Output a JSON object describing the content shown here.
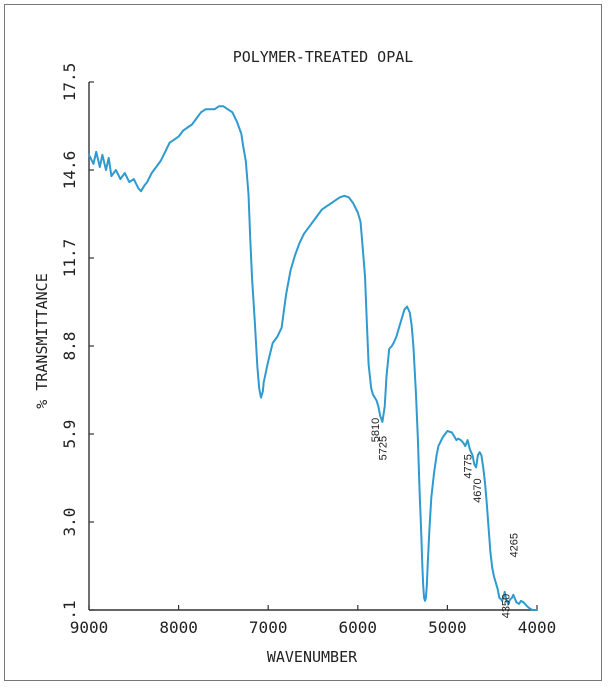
{
  "chart_data": {
    "type": "line",
    "title": "POLYMER-TREATED OPAL",
    "xlabel": "WAVENUMBER",
    "ylabel": "% TRANSMITTANCE",
    "xlim": [
      9000,
      4000
    ],
    "ylim": [
      0.1,
      17.5
    ],
    "x_reversed": true,
    "x_ticks": [
      9000,
      8000,
      7000,
      6000,
      5000,
      4000
    ],
    "x_tick_labels": [
      "9000",
      "8000",
      "7000",
      "6000",
      "5000",
      "4000"
    ],
    "y_ticks": [
      0.1,
      3.0,
      5.9,
      8.8,
      11.7,
      14.6,
      17.5
    ],
    "y_tick_labels": [
      ".1",
      "3.0",
      "5.9",
      "8.8",
      "11.7",
      "14.6",
      "17.5"
    ],
    "grid": false,
    "line_color": "#2e9ad0",
    "series": [
      {
        "x": [
          9000,
          8950,
          8920,
          8880,
          8850,
          8810,
          8780,
          8750,
          8700,
          8650,
          8600,
          8550,
          8500,
          8450,
          8420,
          8400,
          8380,
          8350,
          8300,
          8250,
          8200,
          8150,
          8100,
          8050,
          8000,
          7950,
          7900,
          7850,
          7800,
          7750,
          7700,
          7650,
          7600,
          7550,
          7500,
          7450,
          7400,
          7350,
          7300,
          7280,
          7250,
          7220,
          7200,
          7180,
          7150,
          7120,
          7100,
          7080,
          7060,
          7050,
          7000,
          6950,
          6900,
          6850,
          6800,
          6750,
          6700,
          6650,
          6600,
          6550,
          6500,
          6450,
          6400,
          6350,
          6300,
          6250,
          6200,
          6150,
          6100,
          6050,
          6000,
          5970,
          5950,
          5920,
          5900,
          5880,
          5850,
          5830,
          5810,
          5790,
          5770,
          5750,
          5725,
          5700,
          5680,
          5650,
          5620,
          5600,
          5570,
          5540,
          5520,
          5500,
          5480,
          5450,
          5420,
          5400,
          5380,
          5350,
          5330,
          5310,
          5290,
          5280,
          5270,
          5260,
          5250,
          5240,
          5230,
          5220,
          5200,
          5180,
          5150,
          5120,
          5100,
          5050,
          5000,
          4950,
          4920,
          4900,
          4880,
          4850,
          4820,
          4800,
          4775,
          4750,
          4720,
          4700,
          4680,
          4670,
          4660,
          4640,
          4620,
          4600,
          4580,
          4560,
          4540,
          4520,
          4500,
          4480,
          4460,
          4440,
          4420,
          4400,
          4390,
          4380,
          4370,
          4360,
          4350,
          4340,
          4320,
          4300,
          4280,
          4265,
          4250,
          4230,
          4200,
          4180,
          4150,
          4120,
          4100,
          4080,
          4050,
          4020,
          4000
        ],
        "y": [
          15.1,
          14.8,
          15.2,
          14.7,
          15.1,
          14.6,
          15.0,
          14.4,
          14.6,
          14.3,
          14.5,
          14.2,
          14.3,
          14.0,
          13.9,
          14.0,
          14.1,
          14.2,
          14.5,
          14.7,
          14.9,
          15.2,
          15.5,
          15.6,
          15.7,
          15.9,
          16.0,
          16.1,
          16.3,
          16.5,
          16.6,
          16.6,
          16.6,
          16.7,
          16.7,
          16.6,
          16.5,
          16.2,
          15.8,
          15.4,
          14.9,
          13.8,
          12.3,
          11.0,
          9.6,
          8.1,
          7.4,
          7.1,
          7.3,
          7.6,
          8.3,
          8.9,
          9.1,
          9.4,
          10.5,
          11.3,
          11.8,
          12.2,
          12.5,
          12.7,
          12.9,
          13.1,
          13.3,
          13.4,
          13.5,
          13.6,
          13.7,
          13.75,
          13.7,
          13.5,
          13.2,
          12.9,
          12.2,
          11.1,
          9.6,
          8.2,
          7.4,
          7.2,
          7.1,
          7.0,
          6.8,
          6.5,
          6.3,
          6.8,
          7.8,
          8.7,
          8.8,
          8.9,
          9.1,
          9.4,
          9.6,
          9.8,
          10.0,
          10.1,
          9.9,
          9.5,
          8.8,
          7.2,
          5.8,
          4.0,
          2.5,
          1.6,
          0.9,
          0.5,
          0.4,
          0.5,
          0.9,
          1.6,
          2.8,
          3.8,
          4.6,
          5.2,
          5.5,
          5.8,
          6.0,
          5.95,
          5.8,
          5.7,
          5.75,
          5.7,
          5.6,
          5.5,
          5.7,
          5.4,
          5.2,
          4.9,
          4.8,
          5.0,
          5.2,
          5.3,
          5.2,
          4.8,
          4.3,
          3.6,
          2.8,
          2.0,
          1.5,
          1.2,
          1.0,
          0.8,
          0.5,
          0.45,
          0.4,
          0.5,
          0.55,
          0.7,
          0.55,
          0.4,
          0.3,
          0.45,
          0.5,
          0.6,
          0.5,
          0.35,
          0.3,
          0.4,
          0.35,
          0.25,
          0.2,
          0.15,
          0.1,
          0.1,
          0.1
        ]
      }
    ],
    "annotations": [
      {
        "text": "5810",
        "x": 5810,
        "y": 6.7
      },
      {
        "text": "5725",
        "x": 5725,
        "y": 6.1
      },
      {
        "text": "4775",
        "x": 4775,
        "y": 5.5
      },
      {
        "text": "4670",
        "x": 4670,
        "y": 4.7
      },
      {
        "text": "4350",
        "x": 4350,
        "y": 0.9
      },
      {
        "text": "4265",
        "x": 4265,
        "y": 2.9
      }
    ]
  }
}
